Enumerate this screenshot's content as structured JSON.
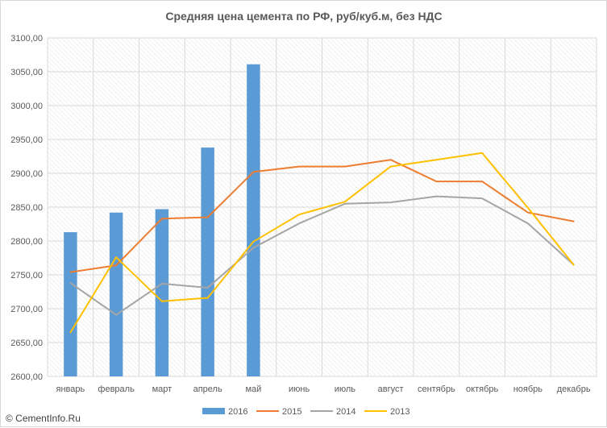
{
  "chart_data": {
    "type": "bar+line",
    "title": "Средняя цена цемента по РФ, руб/куб.м, без НДС",
    "categories": [
      "январь",
      "февраль",
      "март",
      "апрель",
      "май",
      "июнь",
      "июль",
      "август",
      "сентябрь",
      "октябрь",
      "ноябрь",
      "декабрь"
    ],
    "ylim": [
      2600,
      3100
    ],
    "yticks": [
      2600,
      2650,
      2700,
      2750,
      2800,
      2850,
      2900,
      2950,
      3000,
      3050,
      3100
    ],
    "ytick_labels": [
      "2600,00",
      "2650,00",
      "2700,00",
      "2750,00",
      "2800,00",
      "2850,00",
      "2900,00",
      "2950,00",
      "3000,00",
      "3050,00",
      "3100,00"
    ],
    "grid": true,
    "legend_position": "bottom",
    "series": [
      {
        "name": "2016",
        "type": "bar",
        "color": "#5b9bd5",
        "values": [
          2813,
          2842,
          2847,
          2938,
          3061,
          null,
          null,
          null,
          null,
          null,
          null,
          null
        ]
      },
      {
        "name": "2015",
        "type": "line",
        "color": "#ed7d31",
        "values": [
          2754,
          2764,
          2833,
          2835,
          2902,
          2910,
          2910,
          2920,
          2888,
          2888,
          2842,
          2829
        ]
      },
      {
        "name": "2014",
        "type": "line",
        "color": "#a5a5a5",
        "values": [
          2738,
          2691,
          2737,
          2731,
          2790,
          2826,
          2855,
          2857,
          2866,
          2863,
          2826,
          2765
        ]
      },
      {
        "name": "2013",
        "type": "line",
        "color": "#ffc000",
        "values": [
          2665,
          2776,
          2711,
          2716,
          2799,
          2839,
          2858,
          2910,
          2920,
          2930,
          2849,
          2765
        ]
      }
    ]
  },
  "watermark": "© CementInfo.Ru"
}
